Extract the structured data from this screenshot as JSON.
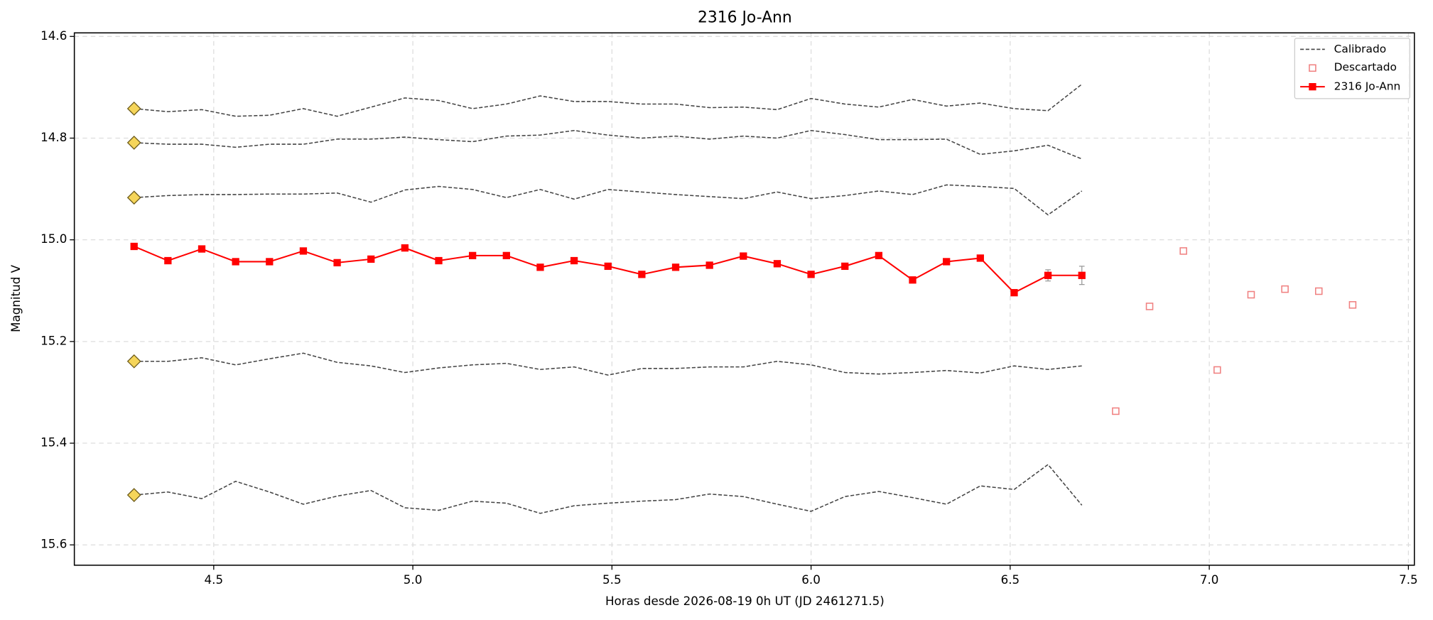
{
  "chart_data": {
    "type": "line",
    "title": "2316 Jo-Ann",
    "x_label": "Horas desde 2026-08-19 0h UT (JD 2461271.5)",
    "y_label": "Magnitud V",
    "xlim": [
      4.15,
      7.515
    ],
    "ylim": [
      15.64,
      14.593
    ],
    "xticks": [
      4.5,
      {
        "value": 5.0,
        "label": "5.0"
      },
      5.5,
      {
        "value": 6.0,
        "label": "6.0"
      },
      6.5,
      {
        "value": 7.0,
        "label": "7.0"
      },
      7.5
    ],
    "yticks": [
      14.6,
      14.8,
      {
        "value": 15.0,
        "label": "15.0"
      },
      15.2,
      15.4,
      15.6
    ],
    "grid": true,
    "legend": "upper right",
    "x": [
      4.3,
      4.385,
      4.47,
      4.555,
      4.64,
      4.725,
      4.81,
      4.895,
      4.98,
      5.065,
      5.15,
      5.235,
      5.32,
      5.405,
      5.49,
      5.575,
      5.66,
      5.745,
      5.83,
      5.915,
      6.0,
      6.085,
      6.17,
      6.255,
      6.34,
      6.425,
      6.51,
      6.595,
      6.68
    ],
    "series": [
      {
        "name": "Calibrado",
        "color": "#444444",
        "start_marker_color": "#f5d55a",
        "lines": [
          [
            14.742,
            14.748,
            14.744,
            14.757,
            14.755,
            14.742,
            14.757,
            14.739,
            14.721,
            14.726,
            14.742,
            14.733,
            14.717,
            14.728,
            14.728,
            14.733,
            14.733,
            14.74,
            14.739,
            14.744,
            14.722,
            14.733,
            14.739,
            14.724,
            14.737,
            14.731,
            14.742,
            14.746,
            14.694
          ],
          [
            14.809,
            14.812,
            14.812,
            14.818,
            14.812,
            14.812,
            14.802,
            14.802,
            14.798,
            14.803,
            14.807,
            14.796,
            14.794,
            14.785,
            14.794,
            14.8,
            14.796,
            14.802,
            14.796,
            14.8,
            14.785,
            14.793,
            14.803,
            14.803,
            14.802,
            14.832,
            14.825,
            14.814,
            14.841
          ],
          [
            14.917,
            14.913,
            14.911,
            14.911,
            14.91,
            14.91,
            14.908,
            14.926,
            14.902,
            14.895,
            14.901,
            14.917,
            14.901,
            14.92,
            14.901,
            14.906,
            14.911,
            14.915,
            14.919,
            14.906,
            14.919,
            14.913,
            14.904,
            14.911,
            14.892,
            14.895,
            14.899,
            14.951,
            14.904
          ],
          [
            15.239,
            15.239,
            15.232,
            15.246,
            15.234,
            15.223,
            15.241,
            15.248,
            15.261,
            15.252,
            15.246,
            15.243,
            15.255,
            15.25,
            15.266,
            15.253,
            15.253,
            15.25,
            15.25,
            15.239,
            15.246,
            15.261,
            15.264,
            15.261,
            15.257,
            15.262,
            15.248,
            15.255,
            15.248
          ],
          [
            15.502,
            15.496,
            15.509,
            15.475,
            15.496,
            15.52,
            15.504,
            15.493,
            15.527,
            15.532,
            15.514,
            15.518,
            15.538,
            15.523,
            15.518,
            15.514,
            15.511,
            15.5,
            15.505,
            15.52,
            15.534,
            15.505,
            15.495,
            15.507,
            15.52,
            15.484,
            15.491,
            15.442,
            15.522
          ]
        ]
      },
      {
        "name": "Descartado",
        "color": "#f08080",
        "x": [
          6.765,
          6.85,
          6.935,
          7.02,
          7.105,
          7.19,
          7.275,
          7.36
        ],
        "values": [
          15.337,
          15.131,
          15.022,
          15.256,
          15.108,
          15.097,
          15.101,
          15.128
        ]
      },
      {
        "name": "2316 Jo-Ann",
        "color": "#ff0000",
        "error_color": "#999999",
        "values": [
          15.013,
          15.041,
          15.018,
          15.043,
          15.043,
          15.022,
          15.045,
          15.038,
          15.016,
          15.041,
          15.031,
          15.031,
          15.054,
          15.041,
          15.052,
          15.068,
          15.054,
          15.05,
          15.032,
          15.047,
          15.068,
          15.052,
          15.031,
          15.079,
          15.043,
          15.036,
          15.104,
          15.07,
          15.07
        ],
        "errors": [
          null,
          null,
          null,
          null,
          null,
          null,
          null,
          null,
          null,
          null,
          null,
          null,
          null,
          null,
          null,
          null,
          null,
          null,
          null,
          null,
          null,
          null,
          null,
          null,
          null,
          null,
          0.005,
          0.011,
          0.018
        ]
      }
    ]
  }
}
